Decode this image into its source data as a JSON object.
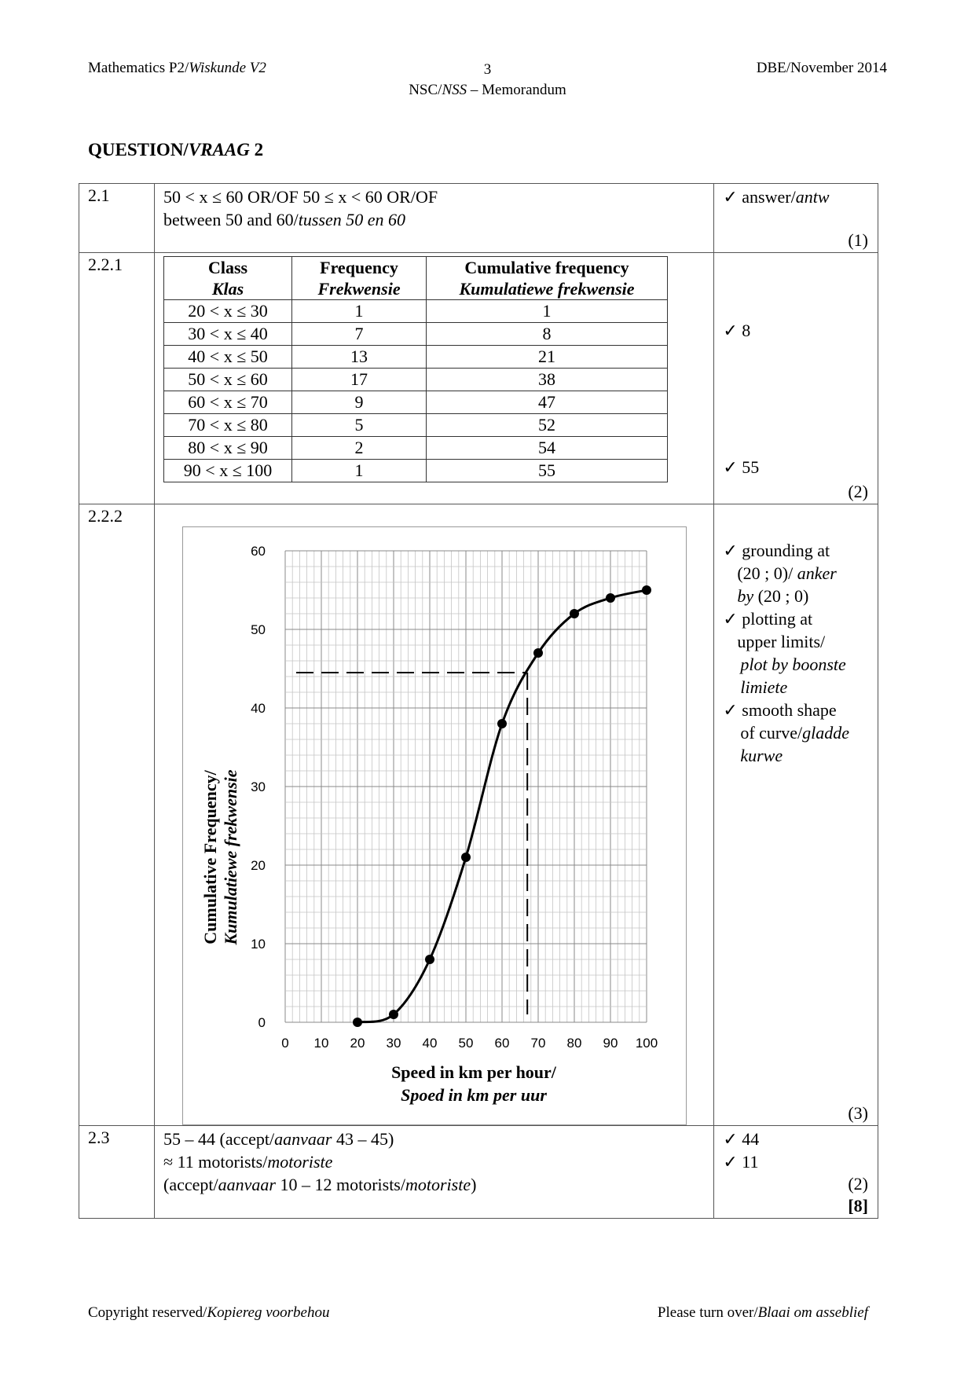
{
  "header": {
    "subject": "Mathematics P2/",
    "subject_af": "Wiskunde V2",
    "page_number": "3",
    "nsc": "NSC/",
    "nss": "NSS",
    "memo": " – Memorandum",
    "exam": "DBE/November 2014"
  },
  "question": {
    "label": "QUESTION/",
    "label_af": "VRAAG",
    "number": " 2"
  },
  "rows": {
    "q21": {
      "number": "2.1",
      "line1": "50 < x ≤ 60   OR/OF   50 ≤  x < 60   OR/OF",
      "line2": "between 50 and 60/",
      "line2_af": "tussen 50 en 60",
      "mark_check": "✓ answer/",
      "mark_check_af": "antw",
      "total": "(1)"
    },
    "q221": {
      "number": "2.2.1",
      "columns": [
        {
          "en": "Class",
          "af": "Klas"
        },
        {
          "en": "Frequency",
          "af": "Frekwensie"
        },
        {
          "en": "Cumulative frequency",
          "af": "Kumulatiewe frekwensie"
        }
      ],
      "table_rows": [
        [
          "20 < x ≤ 30",
          "1",
          "1"
        ],
        [
          "30 < x ≤ 40",
          "7",
          "8"
        ],
        [
          "40 < x ≤ 50",
          "13",
          "21"
        ],
        [
          "50 < x ≤ 60",
          "17",
          "38"
        ],
        [
          "60 < x ≤ 70",
          "9",
          "47"
        ],
        [
          "70 < x ≤ 80",
          "5",
          "52"
        ],
        [
          "80 < x ≤ 90",
          "2",
          "54"
        ],
        [
          "90 < x ≤ 100",
          "1",
          "55"
        ]
      ],
      "mark1": "✓ 8",
      "mark2": "✓ 55",
      "total": "(2)"
    },
    "q222": {
      "number": "2.2.2",
      "marks": [
        {
          "check": "✓ grounding at",
          "rest": "(20 ; 0)/ ",
          "rest_af": "anker",
          "rest2_af": "by",
          "rest2": " (20 ; 0)"
        },
        {
          "check": "✓ plotting at",
          "rest": "upper limits/",
          "rest_af": "plot by boonste",
          "rest2_af": "limiete"
        },
        {
          "check": "✓ smooth shape",
          "rest": "of curve/",
          "rest_af": "gladde",
          "rest2_af": "kurwe"
        }
      ],
      "total": "(3)"
    },
    "q23": {
      "number": "2.3",
      "line1": "55 – 44     (accept/",
      "line1_af": "aanvaar",
      "line1_end": " 43 – 45)",
      "line2": "≈ 11 motorists/",
      "line2_af": "motoriste",
      "line3": "(accept/",
      "line3_af": "aanvaar",
      "line3_mid": " 10 – 12 motorists/",
      "line3_af2": "motoriste",
      "line3_end": ")",
      "mark1": "✓ 44",
      "mark2": "✓ 11",
      "total": "(2)",
      "grand_total": "[8]"
    }
  },
  "chart_data": {
    "type": "line",
    "xlabel": "Speed in km per hour/",
    "xlabel_af": "Spoed in km per uur",
    "ylabel": "Cumulative Frequency/",
    "ylabel_af": "Kumulatiewe frekwensie",
    "xlim": [
      0,
      100
    ],
    "ylim": [
      0,
      60
    ],
    "x_ticks": [
      0,
      10,
      20,
      30,
      40,
      50,
      60,
      70,
      80,
      90,
      100
    ],
    "y_ticks": [
      0,
      10,
      20,
      30,
      40,
      50,
      60
    ],
    "grid": true,
    "points": [
      [
        20,
        0
      ],
      [
        30,
        1
      ],
      [
        40,
        8
      ],
      [
        50,
        21
      ],
      [
        60,
        38
      ],
      [
        70,
        47
      ],
      [
        80,
        52
      ],
      [
        90,
        54
      ],
      [
        100,
        55
      ]
    ],
    "guide_line": {
      "y": 44.5,
      "x": 67,
      "style": "dashed"
    }
  },
  "footer": {
    "left": "Copyright reserved/",
    "left_af": "Kopiereg voorbehou",
    "right": "Please turn over/",
    "right_af": "Blaai om asseblief"
  }
}
